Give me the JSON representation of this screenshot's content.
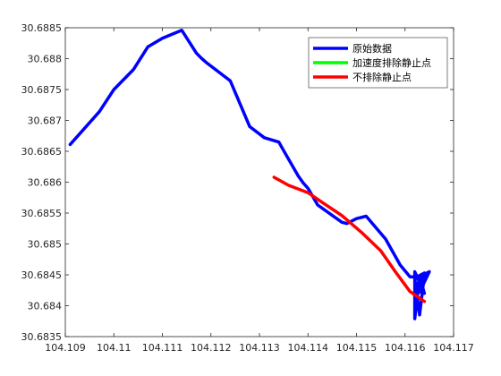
{
  "chart_data": {
    "type": "line",
    "title": "",
    "xlabel": "",
    "ylabel": "",
    "xlim": [
      104.109,
      104.117
    ],
    "ylim": [
      30.6835,
      30.6885
    ],
    "xticks": [
      104.109,
      104.11,
      104.111,
      104.112,
      104.113,
      104.114,
      104.115,
      104.116,
      104.117
    ],
    "yticks": [
      30.6835,
      30.684,
      30.6845,
      30.685,
      30.6855,
      30.686,
      30.6865,
      30.687,
      30.6875,
      30.688,
      30.6885
    ],
    "xtick_labels": [
      "104.109",
      "104.11",
      "104.111",
      "104.112",
      "104.113",
      "104.114",
      "104.115",
      "104.116",
      "104.117"
    ],
    "ytick_labels": [
      "30.6835",
      "30.684",
      "30.6845",
      "30.685",
      "30.6855",
      "30.686",
      "30.6865",
      "30.687",
      "30.6875",
      "30.688",
      "30.6885"
    ],
    "grid": false,
    "legend_placement": "top-right",
    "series": [
      {
        "name": "原始数据",
        "color": "#0000ff",
        "x": [
          104.1091,
          104.1097,
          104.11,
          104.1104,
          104.1107,
          104.111,
          104.1114,
          104.1117,
          104.1118,
          104.1119,
          104.1124,
          104.1128,
          104.1131,
          104.1134,
          104.1135,
          104.1138,
          104.1139,
          104.114,
          104.1142,
          104.1147,
          104.1148,
          104.115,
          104.1152,
          104.1156,
          104.1159,
          104.1161,
          104.1163,
          104.1162,
          104.1162,
          104.1164,
          104.1163,
          104.1165,
          104.1163,
          104.1164,
          104.1162,
          104.1163,
          104.1164,
          104.1162
        ],
        "y": [
          30.68661,
          30.68714,
          30.6875,
          30.68782,
          30.68819,
          30.68833,
          30.68846,
          30.68809,
          30.68801,
          30.68794,
          30.68764,
          30.6869,
          30.68672,
          30.68665,
          30.68651,
          30.6861,
          30.68599,
          30.6859,
          30.68563,
          30.68535,
          30.68533,
          30.68541,
          30.68545,
          30.68508,
          30.68466,
          30.68447,
          30.68446,
          30.68379,
          30.68455,
          30.6842,
          30.68447,
          30.68455,
          30.68422,
          30.68453,
          30.68445,
          30.68385,
          30.6845,
          30.6843
        ]
      },
      {
        "name": "加速度排除静止点",
        "color": "#00ff00",
        "x": [],
        "y": []
      },
      {
        "name": "不排除静止点",
        "color": "#ff0000",
        "x": [
          104.1133,
          104.1136,
          104.114,
          104.1143,
          104.1147,
          104.1151,
          104.1155,
          104.1158,
          104.1161,
          104.1164
        ],
        "y": [
          30.68608,
          30.68595,
          30.68583,
          30.68567,
          30.68546,
          30.68519,
          30.68489,
          30.68455,
          30.68423,
          30.68407
        ]
      }
    ]
  }
}
